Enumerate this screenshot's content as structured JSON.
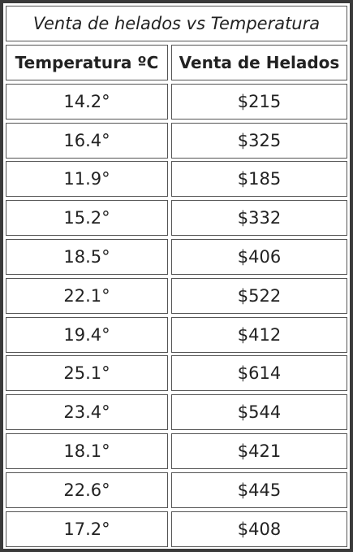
{
  "table": {
    "title": "Venta de helados vs Temperatura",
    "headers": [
      "Temperatura ºC",
      "Venta de Helados"
    ],
    "rows": [
      [
        "14.2°",
        "$215"
      ],
      [
        "16.4°",
        "$325"
      ],
      [
        "11.9°",
        "$185"
      ],
      [
        "15.2°",
        "$332"
      ],
      [
        "18.5°",
        "$406"
      ],
      [
        "22.1°",
        "$522"
      ],
      [
        "19.4°",
        "$412"
      ],
      [
        "25.1°",
        "$614"
      ],
      [
        "23.4°",
        "$544"
      ],
      [
        "18.1°",
        "$421"
      ],
      [
        "22.6°",
        "$445"
      ],
      [
        "17.2°",
        "$408"
      ]
    ]
  },
  "colors": {
    "frame": "#3a3a3a",
    "border": "#555555",
    "text": "#222222",
    "background": "#ffffff"
  }
}
